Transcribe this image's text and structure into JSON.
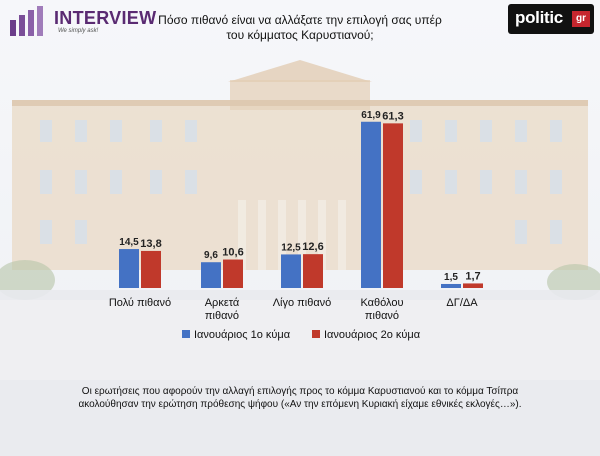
{
  "brand": {
    "name": "INTERVIEW",
    "tagline": "We simply ask!",
    "partner": "politic",
    "partner_suffix": "gr"
  },
  "colors": {
    "series1": "#4472c4",
    "series2": "#c0392b",
    "brand_purple": "#5a2a72"
  },
  "chart_data": {
    "type": "bar",
    "title": "Πόσο πιθανό είναι να αλλάξατε την επιλογή σας υπέρ του κόμματος Καρυστιανού;",
    "categories": [
      "Πολύ πιθανό",
      "Αρκετά πιθανό",
      "Λίγο πιθανό",
      "Καθόλου πιθανό",
      "ΔΓ/ΔΑ"
    ],
    "series": [
      {
        "name": "Ιανουάριος 1ο κύμα",
        "values": [
          14.5,
          9.6,
          12.5,
          61.9,
          1.5
        ],
        "labels": [
          "14,5",
          "9,6",
          "12,5",
          "61,9",
          "1,5"
        ]
      },
      {
        "name": "Ιανουάριος 2ο κύμα",
        "values": [
          13.8,
          10.6,
          12.6,
          61.3,
          1.7
        ],
        "labels": [
          "13,8",
          "10,6",
          "12,6",
          "61,3",
          "1,7"
        ]
      }
    ],
    "ylim": [
      0,
      70
    ],
    "legend": "bottom",
    "grid": false
  },
  "footnote": "Οι ερωτήσεις που αφορούν την αλλαγή επιλογής προς το κόμμα Καρυστιανού και το κόμμα Τσίπρα ακολούθησαν την ερώτηση πρόθεσης ψήφου («Αν την επόμενη Κυριακή είχαμε εθνικές εκλογές…»)."
}
